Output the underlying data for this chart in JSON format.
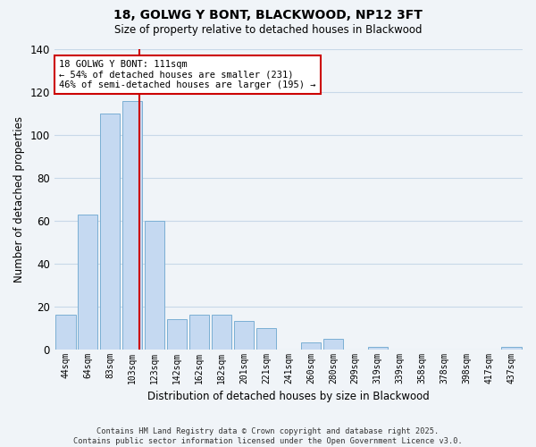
{
  "title": "18, GOLWG Y BONT, BLACKWOOD, NP12 3FT",
  "subtitle": "Size of property relative to detached houses in Blackwood",
  "xlabel": "Distribution of detached houses by size in Blackwood",
  "ylabel": "Number of detached properties",
  "bar_labels": [
    "44sqm",
    "64sqm",
    "83sqm",
    "103sqm",
    "123sqm",
    "142sqm",
    "162sqm",
    "182sqm",
    "201sqm",
    "221sqm",
    "241sqm",
    "260sqm",
    "280sqm",
    "299sqm",
    "319sqm",
    "339sqm",
    "358sqm",
    "378sqm",
    "398sqm",
    "417sqm",
    "437sqm"
  ],
  "bar_values": [
    16,
    63,
    110,
    116,
    60,
    14,
    16,
    16,
    13,
    10,
    0,
    3,
    5,
    0,
    1,
    0,
    0,
    0,
    0,
    0,
    1
  ],
  "bar_color": "#c5d9f1",
  "bar_edge_color": "#7bafd4",
  "vline_x": 3.3,
  "vline_color": "#cc0000",
  "annotation_title": "18 GOLWG Y BONT: 111sqm",
  "annotation_line1": "← 54% of detached houses are smaller (231)",
  "annotation_line2": "46% of semi-detached houses are larger (195) →",
  "annotation_box_color": "#ffffff",
  "annotation_box_edge": "#cc0000",
  "ylim": [
    0,
    140
  ],
  "yticks": [
    0,
    20,
    40,
    60,
    80,
    100,
    120,
    140
  ],
  "footer_line1": "Contains HM Land Registry data © Crown copyright and database right 2025.",
  "footer_line2": "Contains public sector information licensed under the Open Government Licence v3.0.",
  "bg_color": "#f0f4f8",
  "grid_color": "#c8d8e8"
}
